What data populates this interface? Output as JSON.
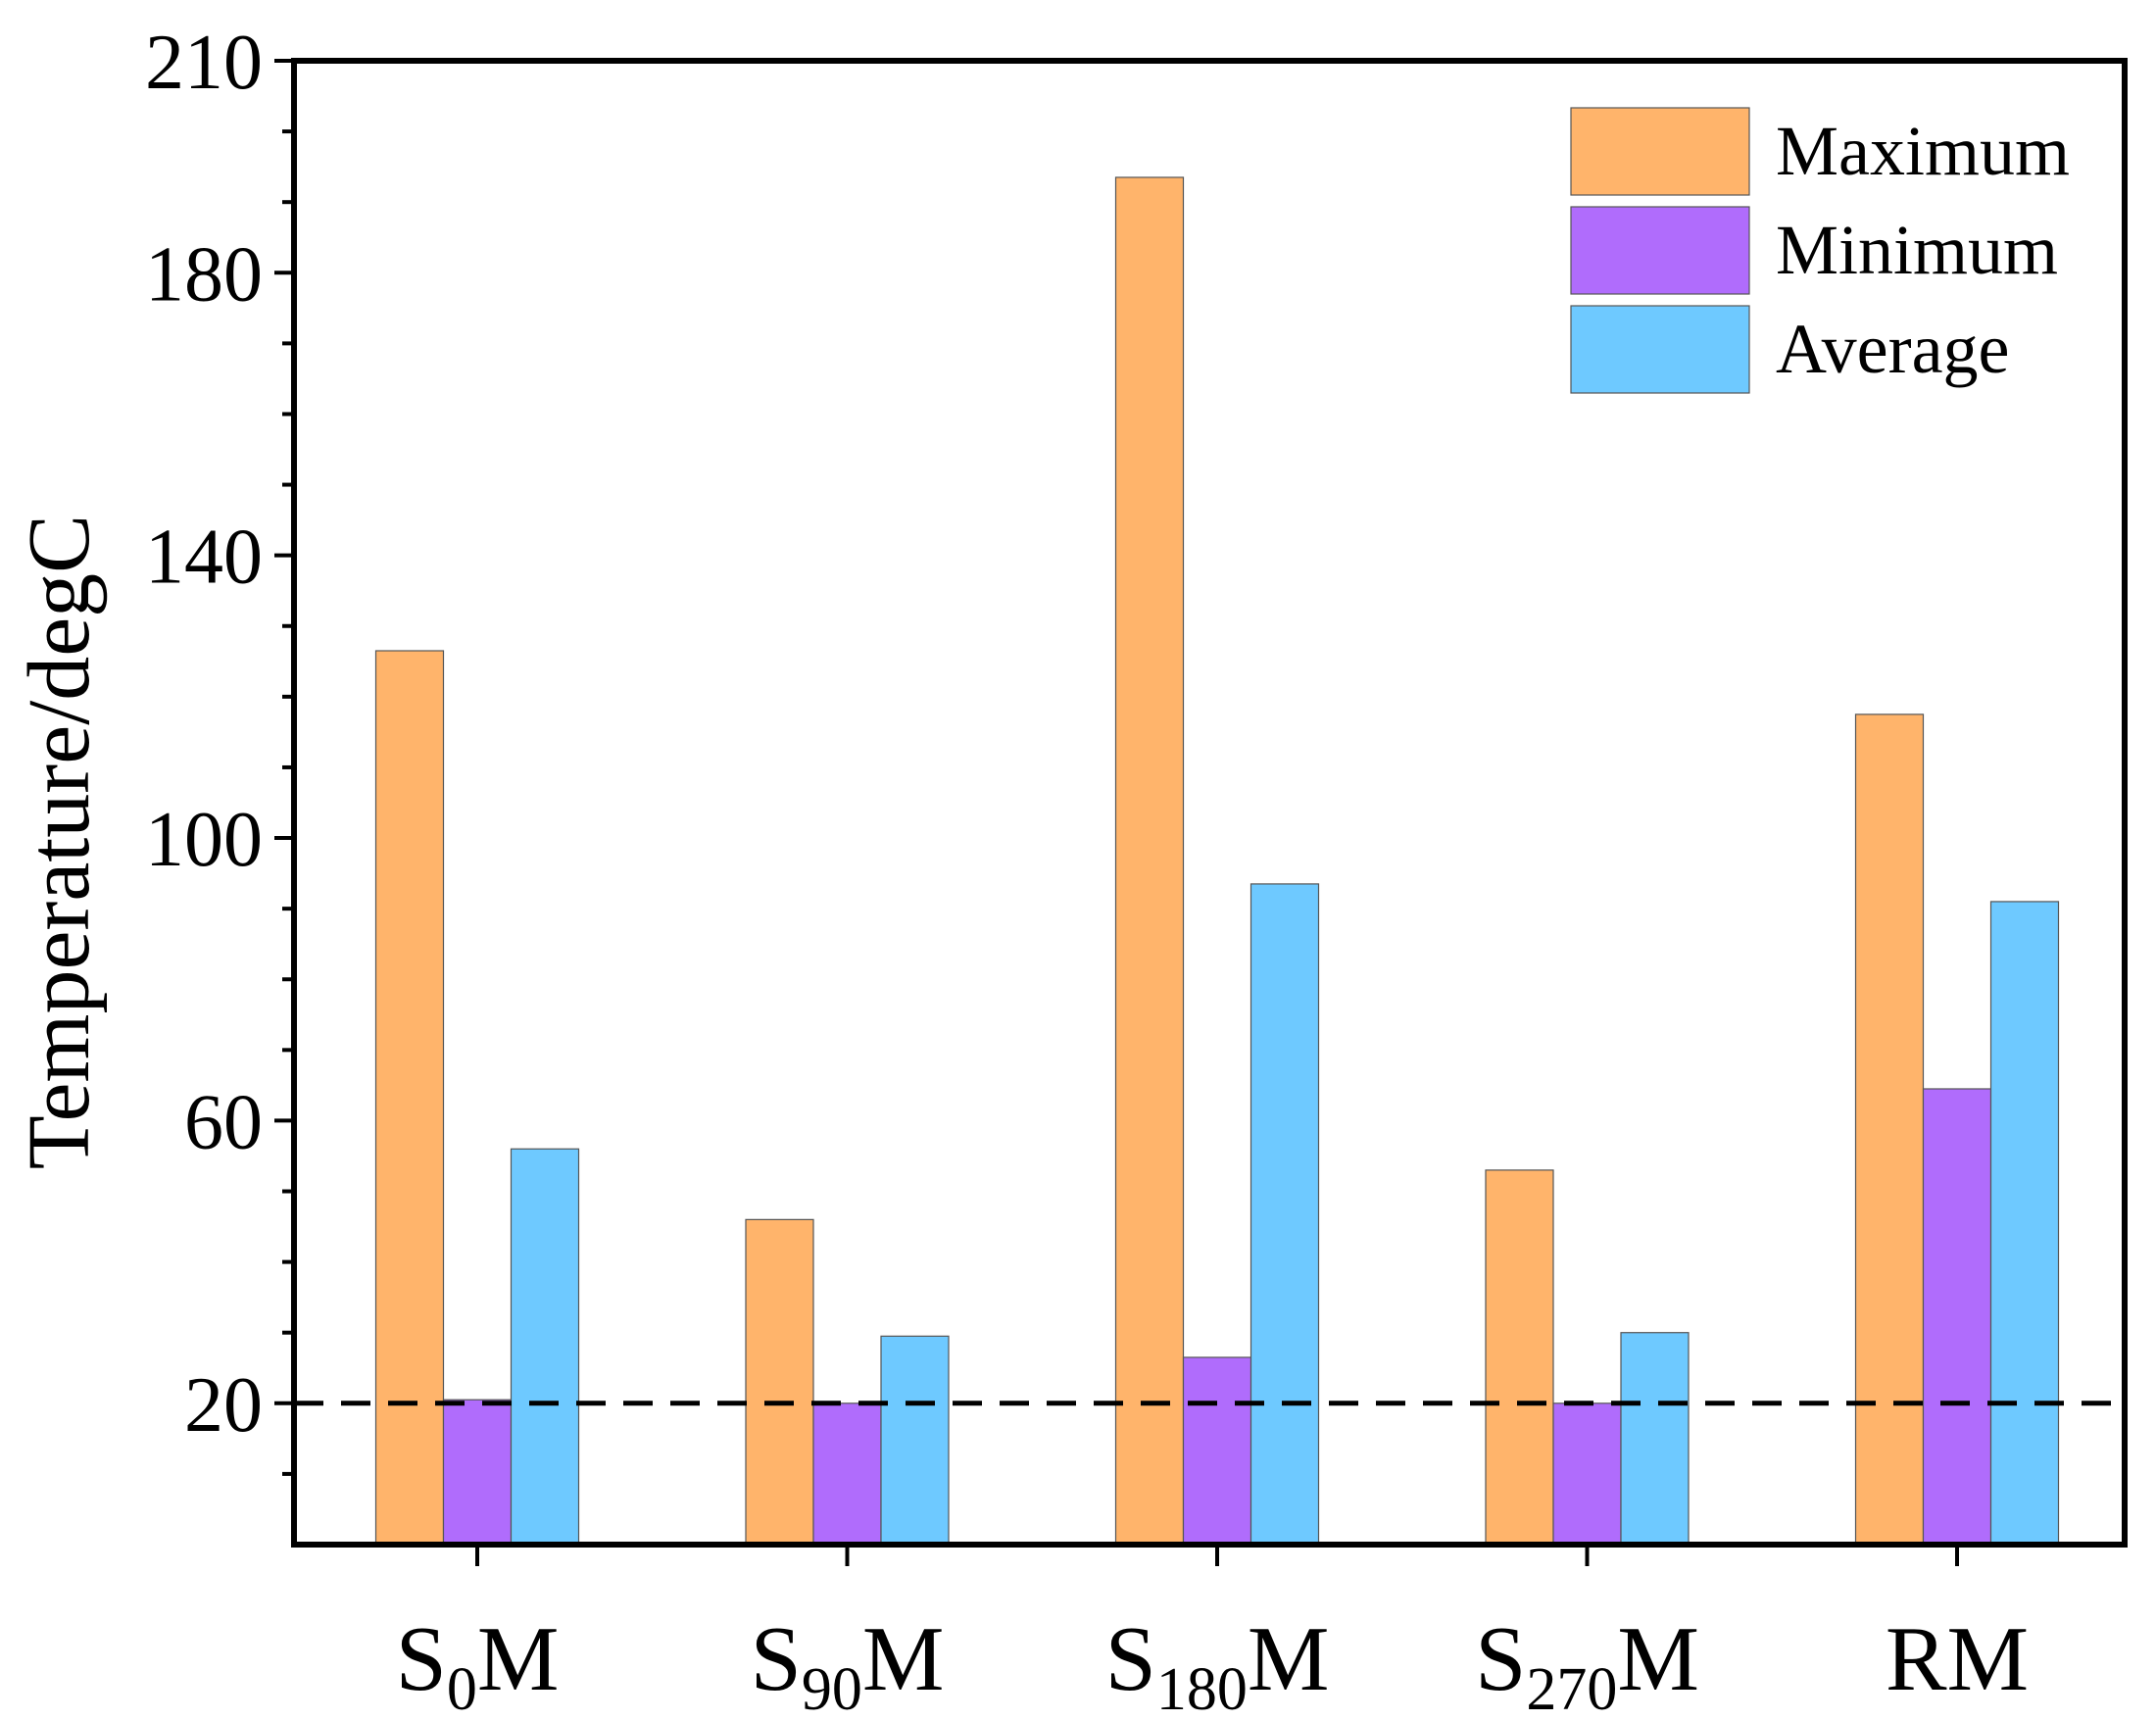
{
  "chart_data": {
    "type": "bar",
    "title": "",
    "xlabel": "",
    "ylabel": "Temperature/degC",
    "ylim": [
      0,
      210
    ],
    "yticks_major": [
      20,
      60,
      100,
      140,
      180,
      210
    ],
    "yticks_minor_step": 10,
    "categories": [
      {
        "base": "S",
        "sub": "0",
        "suffix": "M"
      },
      {
        "base": "S",
        "sub": "90",
        "suffix": "M"
      },
      {
        "base": "S",
        "sub": "180",
        "suffix": "M"
      },
      {
        "base": "S",
        "sub": "270",
        "suffix": "M"
      },
      {
        "base": "RM",
        "sub": "",
        "suffix": ""
      }
    ],
    "series": [
      {
        "name": "Maximum",
        "color": "#FFB46B",
        "values": [
          126.5,
          46,
          193.5,
          53,
          117.5
        ]
      },
      {
        "name": "Minimum",
        "color": "#B06CFC",
        "values": [
          20.5,
          20,
          26.5,
          20,
          64.5
        ]
      },
      {
        "name": "Average",
        "color": "#6EC9FF",
        "values": [
          56,
          29.5,
          93.5,
          30,
          91
        ]
      }
    ],
    "reference_line": {
      "value": 20,
      "style": "dashed",
      "color": "#000000"
    },
    "legend_position": "top-right",
    "grid": false
  }
}
